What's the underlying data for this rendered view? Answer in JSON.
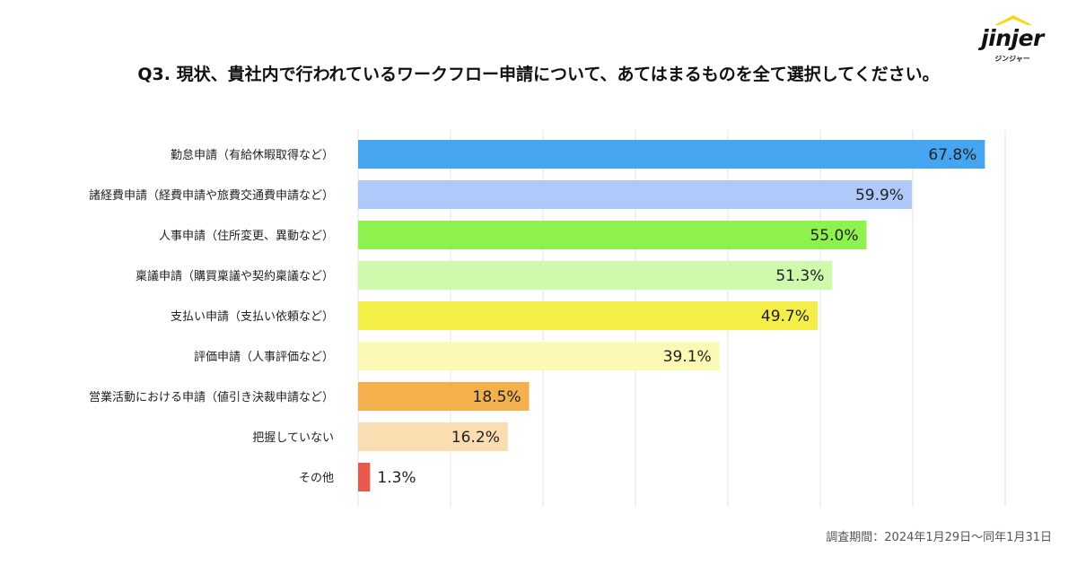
{
  "header": {
    "title": "Q3. 現状、貴社内で行われているワークフロー申請について、あてはまるものを全て選択してください。"
  },
  "logo": {
    "text": "jinjer",
    "subtext": "ジンジャー"
  },
  "chart_data": {
    "type": "bar",
    "orientation": "horizontal",
    "title": "Q3. 現状、貴社内で行われているワークフロー申請について、あてはまるものを全て選択してください。",
    "xlim": [
      0,
      70
    ],
    "grid": true,
    "categories": [
      "勤怠申請（有給休暇取得など）",
      "諸経費申請（経費申請や旅費交通費申請など）",
      "人事申請（住所変更、異動など）",
      "稟議申請（購買稟議や契約稟議など）",
      "支払い申請（支払い依頼など）",
      "評価申請（人事評価など）",
      "営業活動における申請（値引き決裁申請など）",
      "把握していない",
      "その他"
    ],
    "values": [
      67.8,
      59.9,
      55.0,
      51.3,
      49.7,
      39.1,
      18.5,
      16.2,
      1.3
    ],
    "value_labels": [
      "67.8%",
      "59.9%",
      "55.0%",
      "51.3%",
      "49.7%",
      "39.1%",
      "18.5%",
      "16.2%",
      "1.3%"
    ],
    "colors": [
      "#45A5F0",
      "#AFC9FA",
      "#8EF24E",
      "#CFF9AD",
      "#F3EE48",
      "#FCF9B4",
      "#F4B04D",
      "#FADDB0",
      "#E9594B"
    ]
  },
  "footer": {
    "note": "調査期間：2024年1月29日〜同年1月31日"
  }
}
